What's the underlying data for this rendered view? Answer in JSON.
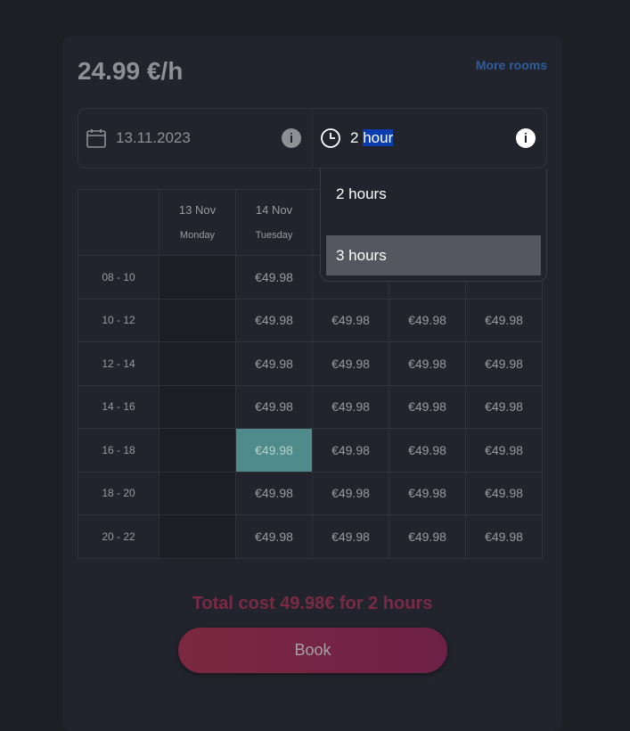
{
  "header": {
    "price": "24.99 €/h",
    "more_rooms": "More rooms"
  },
  "selector": {
    "date": "13.11.2023",
    "duration_number": "2",
    "duration_unit": "hour",
    "info": "i"
  },
  "dropdown": {
    "options": [
      "2 hours",
      "3 hours"
    ],
    "highlighted": "3 hours"
  },
  "table": {
    "days": [
      {
        "date": "13 Nov",
        "day": "Monday"
      },
      {
        "date": "14 Nov",
        "day": "Tuesday"
      },
      {
        "date": "",
        "day": ""
      },
      {
        "date": "",
        "day": ""
      },
      {
        "date": "",
        "day": ""
      }
    ],
    "slots": [
      "08 - 10",
      "10 - 12",
      "12 - 14",
      "14 - 16",
      "16 - 18",
      "18 - 20",
      "20 - 22"
    ],
    "price": "€49.98",
    "selected": {
      "slot": "16 - 18",
      "day": "14 Nov"
    }
  },
  "footer": {
    "total": "Total cost 49.98€ for 2 hours",
    "book": "Book"
  },
  "colors": {
    "accent": "#7b2940",
    "selected": "#4e8b8a",
    "link": "#2f5c9c",
    "highlight": "#0b3dae"
  }
}
